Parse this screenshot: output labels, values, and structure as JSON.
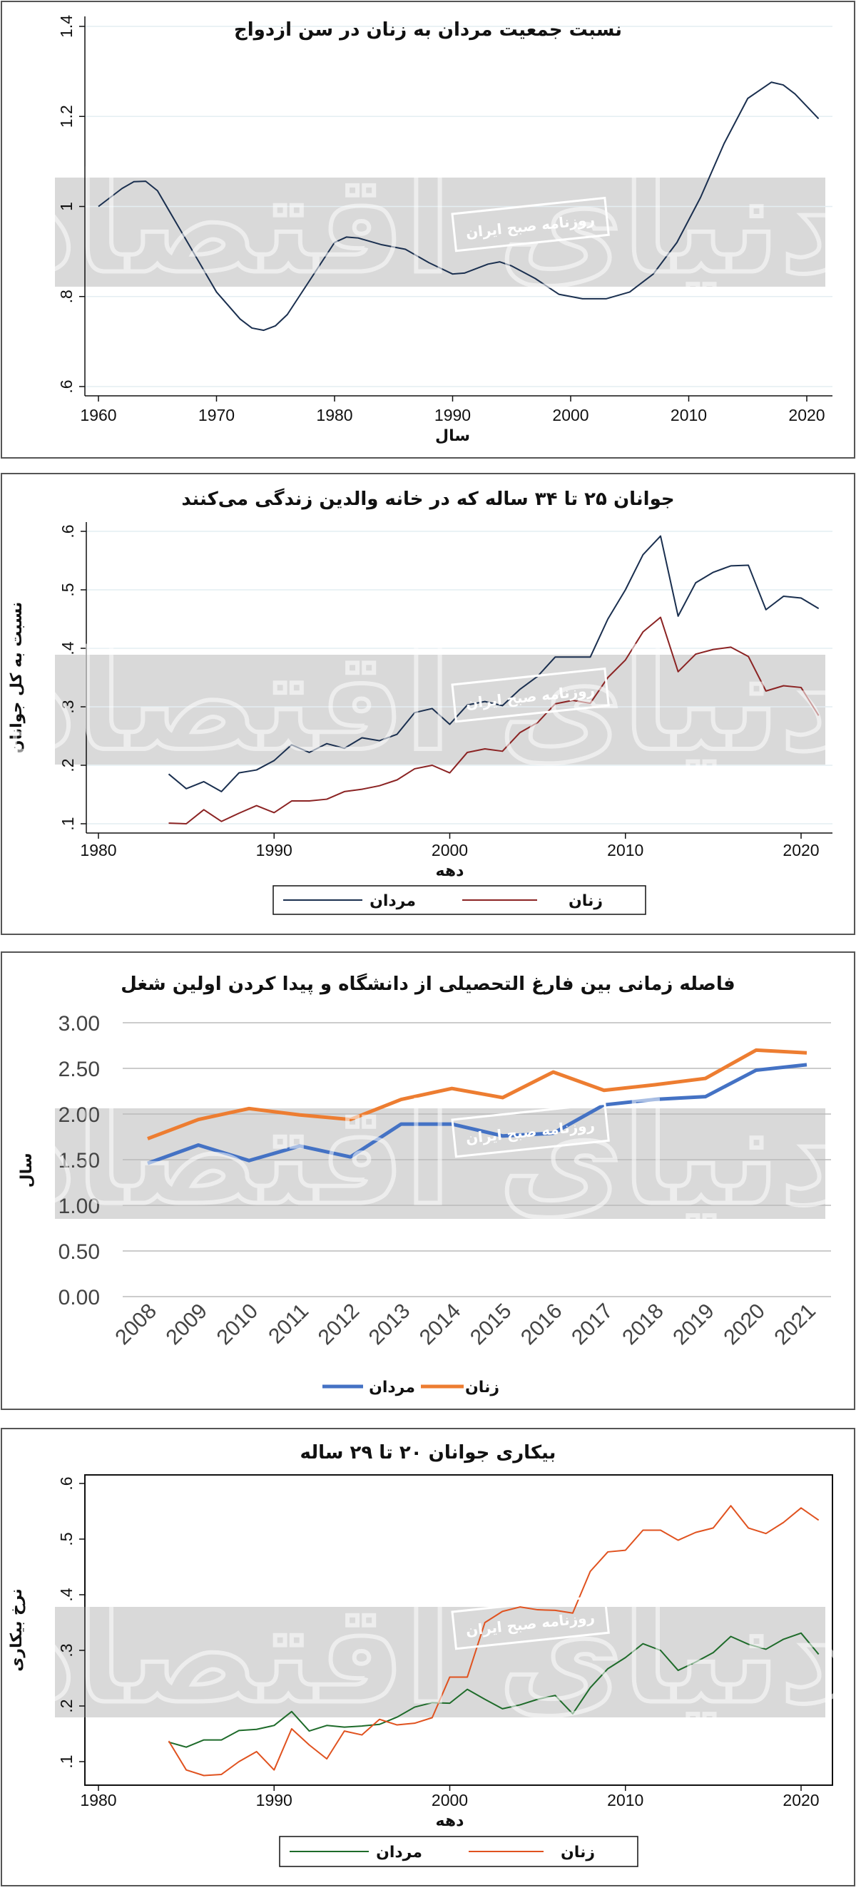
{
  "watermark": {
    "logo_text": "دنیای اقتصاد",
    "stamp_text": "روزنامه صبح ایران",
    "band_color": "#d9d9d9"
  },
  "chart_data": [
    {
      "type": "line",
      "title": "نسبت جمعیت مردان به زنان در سن ازدواج",
      "xlabel": "سال",
      "ylabel": "",
      "xlim": [
        1960,
        2021
      ],
      "ylim": [
        0.6,
        1.4
      ],
      "xticks": [
        1960,
        1970,
        1980,
        1990,
        2000,
        2010,
        2020
      ],
      "yticks": [
        0.6,
        0.8,
        1,
        1.2,
        1.4
      ],
      "ytick_labels": [
        ".6",
        ".8",
        "1",
        "1.2",
        "1.4"
      ],
      "grid": true,
      "series": [
        {
          "color": "#1a2f4f",
          "x": [
            1960,
            1962,
            1963,
            1964,
            1965,
            1966,
            1968,
            1970,
            1972,
            1973,
            1974,
            1975,
            1976,
            1978,
            1980,
            1981,
            1982,
            1984,
            1986,
            1988,
            1990,
            1991,
            1993,
            1994,
            1995,
            1997,
            1999,
            2001,
            2003,
            2005,
            2007,
            2009,
            2011,
            2013,
            2015,
            2017,
            2018,
            2019,
            2021
          ],
          "y": [
            1.0,
            1.04,
            1.055,
            1.056,
            1.035,
            0.99,
            0.9,
            0.81,
            0.75,
            0.73,
            0.725,
            0.735,
            0.76,
            0.84,
            0.92,
            0.932,
            0.93,
            0.915,
            0.905,
            0.875,
            0.85,
            0.852,
            0.872,
            0.877,
            0.868,
            0.84,
            0.805,
            0.795,
            0.795,
            0.81,
            0.85,
            0.92,
            1.02,
            1.14,
            1.24,
            1.276,
            1.27,
            1.25,
            1.195
          ]
        }
      ]
    },
    {
      "type": "line",
      "title": "جوانان ۲۵ تا ۳۴ ساله که در خانه والدین زندگی می‌کنند",
      "xlabel": "دهه",
      "ylabel": "نسبت به کل جوانان",
      "xlim": [
        1980,
        2021
      ],
      "ylim": [
        0.1,
        0.6
      ],
      "xticks": [
        1980,
        1990,
        2000,
        2010,
        2020
      ],
      "yticks": [
        0.1,
        0.2,
        0.3,
        0.4,
        0.5,
        0.6
      ],
      "ytick_labels": [
        ".1",
        ".2",
        ".3",
        ".4",
        ".5",
        ".6"
      ],
      "grid": true,
      "legend": "bottom",
      "x": [
        1984,
        1985,
        1986,
        1987,
        1988,
        1989,
        1990,
        1991,
        1992,
        1993,
        1994,
        1995,
        1996,
        1997,
        1998,
        1999,
        2000,
        2001,
        2002,
        2003,
        2004,
        2005,
        2006,
        2007,
        2008,
        2009,
        2010,
        2011,
        2012,
        2013,
        2014,
        2015,
        2016,
        2017,
        2018,
        2019,
        2020,
        2021
      ],
      "series": [
        {
          "name": "مردان",
          "color": "#1a2f4f",
          "y": [
            0.185,
            0.16,
            0.172,
            0.155,
            0.187,
            0.192,
            0.208,
            0.235,
            0.222,
            0.237,
            0.229,
            0.247,
            0.242,
            0.253,
            0.29,
            0.297,
            0.27,
            0.303,
            0.309,
            0.302,
            0.33,
            0.352,
            0.385,
            0.385,
            0.385,
            0.45,
            0.5,
            0.56,
            0.592,
            0.455,
            0.512,
            0.53,
            0.541,
            0.542,
            0.466,
            0.489,
            0.486,
            0.468
          ]
        },
        {
          "name": "زنان",
          "color": "#8b2323",
          "y": [
            0.101,
            0.1,
            0.124,
            0.104,
            0.118,
            0.131,
            0.119,
            0.139,
            0.139,
            0.142,
            0.155,
            0.159,
            0.165,
            0.175,
            0.194,
            0.2,
            0.187,
            0.222,
            0.228,
            0.224,
            0.256,
            0.273,
            0.305,
            0.311,
            0.306,
            0.35,
            0.38,
            0.428,
            0.453,
            0.36,
            0.39,
            0.398,
            0.402,
            0.386,
            0.327,
            0.336,
            0.333,
            0.285
          ]
        }
      ]
    },
    {
      "type": "line",
      "title": "فاصله زمانی بین فارغ التحصیلی از دانشگاه و پیدا کردن اولین شغل",
      "xlabel": "",
      "ylabel": "سال",
      "ylim": [
        0,
        3
      ],
      "yticks": [
        0,
        0.5,
        1,
        1.5,
        2,
        2.5,
        3
      ],
      "ytick_labels": [
        "0.00",
        "0.50",
        "1.00",
        "1.50",
        "2.00",
        "2.50",
        "3.00"
      ],
      "grid": true,
      "legend": "bottom",
      "categories": [
        "2008",
        "2009",
        "2010",
        "2011",
        "2012",
        "2013",
        "2014",
        "2015",
        "2016",
        "2017",
        "2018",
        "2019",
        "2020",
        "2021"
      ],
      "series": [
        {
          "name": "مردان",
          "color": "#4472c4",
          "values": [
            1.46,
            1.66,
            1.49,
            1.65,
            1.53,
            1.89,
            1.89,
            1.76,
            1.79,
            2.1,
            2.16,
            2.19,
            2.48,
            2.54
          ]
        },
        {
          "name": "زنان",
          "color": "#ed7d31",
          "values": [
            1.73,
            1.94,
            2.06,
            1.99,
            1.94,
            2.16,
            2.28,
            2.18,
            2.46,
            2.26,
            2.32,
            2.39,
            2.7,
            2.67
          ]
        }
      ]
    },
    {
      "type": "line",
      "title": "بیکاری جوانان ۲۰ تا ۲۹ ساله",
      "xlabel": "دهه",
      "ylabel": "نرخ بیکاری",
      "xlim": [
        1980,
        2021
      ],
      "ylim": [
        0.1,
        0.6
      ],
      "xticks": [
        1980,
        1990,
        2000,
        2010,
        2020
      ],
      "yticks": [
        0.1,
        0.2,
        0.3,
        0.4,
        0.5,
        0.6
      ],
      "ytick_labels": [
        ".1",
        ".2",
        ".3",
        ".4",
        ".5",
        ".6"
      ],
      "grid": false,
      "legend": "bottom",
      "x": [
        1984,
        1985,
        1986,
        1987,
        1988,
        1989,
        1990,
        1991,
        1992,
        1993,
        1994,
        1995,
        1996,
        1997,
        1998,
        1999,
        2000,
        2001,
        2002,
        2003,
        2004,
        2005,
        2006,
        2007,
        2008,
        2009,
        2010,
        2011,
        2012,
        2013,
        2014,
        2015,
        2016,
        2017,
        2018,
        2019,
        2020,
        2021
      ],
      "series": [
        {
          "name": "مردان",
          "color": "#1e6b2a",
          "y": [
            0.135,
            0.126,
            0.139,
            0.139,
            0.156,
            0.158,
            0.165,
            0.19,
            0.155,
            0.165,
            0.162,
            0.164,
            0.167,
            0.18,
            0.198,
            0.206,
            0.205,
            0.23,
            0.212,
            0.195,
            0.202,
            0.212,
            0.219,
            0.186,
            0.233,
            0.267,
            0.287,
            0.312,
            0.3,
            0.264,
            0.279,
            0.296,
            0.325,
            0.311,
            0.302,
            0.32,
            0.331,
            0.293
          ]
        },
        {
          "name": "زنان",
          "color": "#e0521f",
          "y": [
            0.137,
            0.085,
            0.075,
            0.077,
            0.1,
            0.118,
            0.085,
            0.159,
            0.13,
            0.105,
            0.155,
            0.148,
            0.176,
            0.166,
            0.169,
            0.179,
            0.252,
            0.252,
            0.35,
            0.37,
            0.378,
            0.373,
            0.372,
            0.367,
            0.442,
            0.477,
            0.48,
            0.516,
            0.516,
            0.498,
            0.512,
            0.52,
            0.56,
            0.52,
            0.51,
            0.53,
            0.556,
            0.534
          ]
        }
      ]
    }
  ]
}
